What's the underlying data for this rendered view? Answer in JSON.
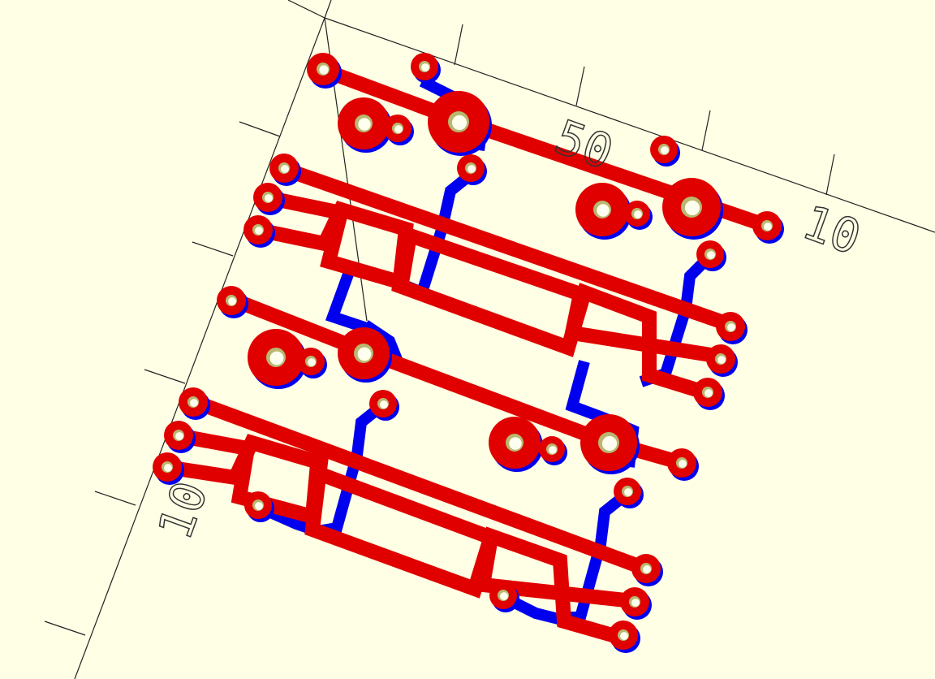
{
  "viewport": {
    "axis_labels": [
      "50",
      "10",
      "10"
    ]
  }
}
